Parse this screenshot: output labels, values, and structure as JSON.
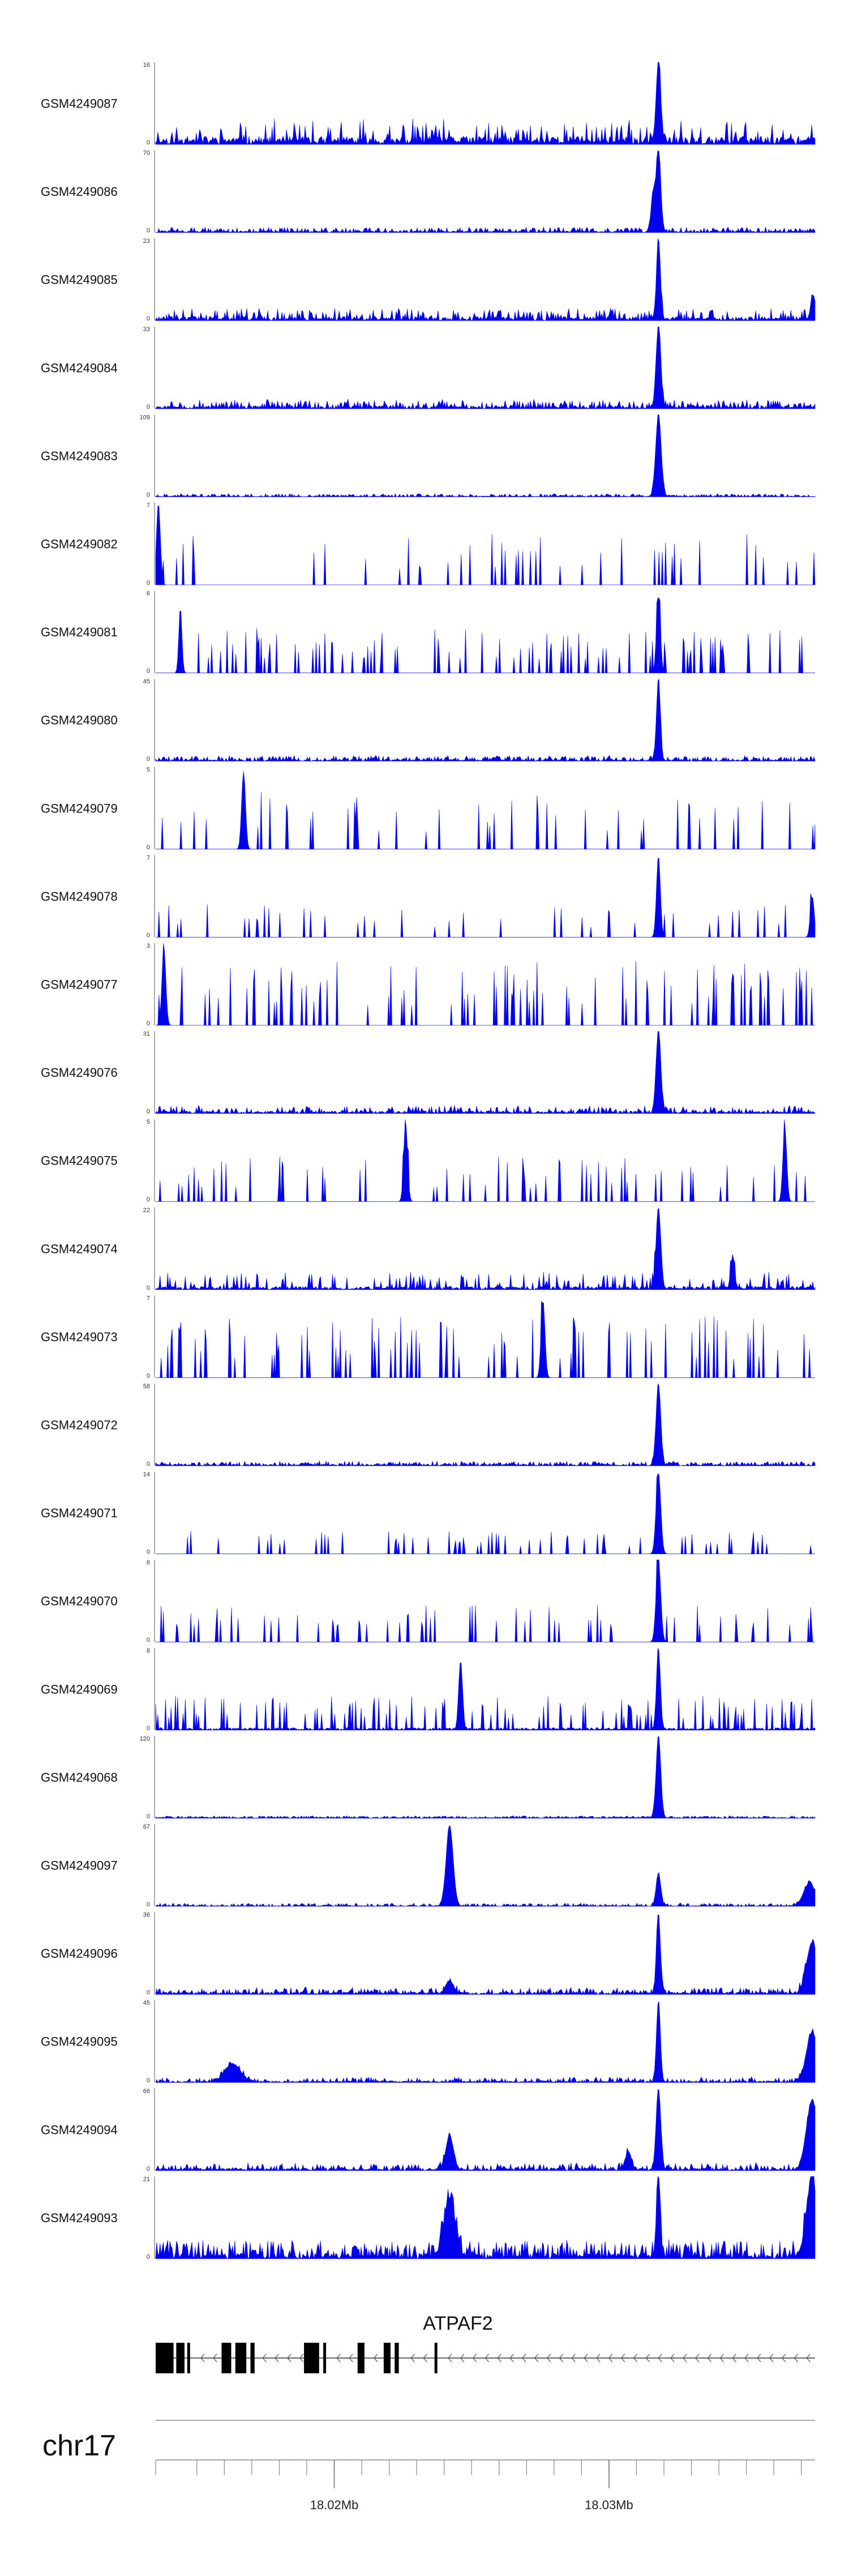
{
  "chart_data": {
    "type": "area",
    "title": "",
    "chromosome": "chr17",
    "region_mb": [
      18.0135,
      18.0375
    ],
    "series_color": "#0000ee",
    "series": [
      {
        "name": "GSM4249087",
        "ymax": "16",
        "ymin": "0",
        "max_value": 16,
        "baseline": 0.1,
        "noise": 0.22,
        "sparsity": 0.82,
        "seed": 11,
        "peaks": [
          {
            "pos": 18.0318,
            "height": 1.0,
            "width": 0.00012
          }
        ]
      },
      {
        "name": "GSM4249086",
        "ymax": "70",
        "ymin": "0",
        "max_value": 70,
        "baseline": 0.02,
        "noise": 0.05,
        "sparsity": 0.6,
        "seed": 12,
        "peaks": [
          {
            "pos": 18.0318,
            "height": 1.0,
            "width": 0.00012
          },
          {
            "pos": 18.0316,
            "height": 0.45,
            "width": 0.0001
          }
        ]
      },
      {
        "name": "GSM4249085",
        "ymax": "23",
        "ymin": "0",
        "max_value": 23,
        "baseline": 0.05,
        "noise": 0.12,
        "sparsity": 0.75,
        "seed": 13,
        "peaks": [
          {
            "pos": 18.0318,
            "height": 1.0,
            "width": 0.0001
          },
          {
            "pos": 18.0374,
            "height": 0.28,
            "width": 0.0001
          }
        ]
      },
      {
        "name": "GSM4249084",
        "ymax": "33",
        "ymin": "0",
        "max_value": 33,
        "baseline": 0.04,
        "noise": 0.08,
        "sparsity": 0.7,
        "seed": 14,
        "peaks": [
          {
            "pos": 18.0318,
            "height": 1.0,
            "width": 0.00012
          }
        ]
      },
      {
        "name": "GSM4249083",
        "ymax": "109",
        "ymin": "0",
        "max_value": 109,
        "baseline": 0.01,
        "noise": 0.03,
        "sparsity": 0.55,
        "seed": 15,
        "peaks": [
          {
            "pos": 18.0318,
            "height": 1.0,
            "width": 0.00014
          }
        ]
      },
      {
        "name": "GSM4249082",
        "ymax": "7",
        "ymin": "0",
        "max_value": 7,
        "baseline": 0.0,
        "noise": 0.62,
        "sparsity": 0.93,
        "seed": 16,
        "peaks": [
          {
            "pos": 18.0136,
            "height": 1.0,
            "width": 0.0001
          }
        ]
      },
      {
        "name": "GSM4249081",
        "ymax": "6",
        "ymin": "0",
        "max_value": 6,
        "baseline": 0.0,
        "noise": 0.55,
        "sparsity": 0.88,
        "seed": 17,
        "peaks": [
          {
            "pos": 18.0318,
            "height": 0.95,
            "width": 0.0001
          },
          {
            "pos": 18.0144,
            "height": 0.8,
            "width": 8e-05
          }
        ]
      },
      {
        "name": "GSM4249080",
        "ymax": "45",
        "ymin": "0",
        "max_value": 45,
        "baseline": 0.02,
        "noise": 0.05,
        "sparsity": 0.6,
        "seed": 18,
        "peaks": [
          {
            "pos": 18.0318,
            "height": 1.0,
            "width": 0.0001
          }
        ]
      },
      {
        "name": "GSM4249079",
        "ymax": "5",
        "ymin": "0",
        "max_value": 5,
        "baseline": 0.0,
        "noise": 0.7,
        "sparsity": 0.9,
        "seed": 19,
        "peaks": [
          {
            "pos": 18.0167,
            "height": 0.95,
            "width": 0.0001
          }
        ]
      },
      {
        "name": "GSM4249078",
        "ymax": "7",
        "ymin": "0",
        "max_value": 7,
        "baseline": 0.0,
        "noise": 0.4,
        "sparsity": 0.93,
        "seed": 20,
        "peaks": [
          {
            "pos": 18.0318,
            "height": 1.0,
            "width": 0.0001
          },
          {
            "pos": 18.0374,
            "height": 0.5,
            "width": 0.0001
          }
        ]
      },
      {
        "name": "GSM4249077",
        "ymax": "3",
        "ymin": "0",
        "max_value": 3,
        "baseline": 0.0,
        "noise": 0.78,
        "sparsity": 0.85,
        "seed": 21,
        "peaks": [
          {
            "pos": 18.0138,
            "height": 0.95,
            "width": 0.0001
          }
        ]
      },
      {
        "name": "GSM4249076",
        "ymax": "31",
        "ymin": "0",
        "max_value": 31,
        "baseline": 0.03,
        "noise": 0.07,
        "sparsity": 0.7,
        "seed": 22,
        "peaks": [
          {
            "pos": 18.0318,
            "height": 1.0,
            "width": 0.00012
          }
        ]
      },
      {
        "name": "GSM4249075",
        "ymax": "5",
        "ymin": "0",
        "max_value": 5,
        "baseline": 0.0,
        "noise": 0.55,
        "sparsity": 0.88,
        "seed": 23,
        "peaks": [
          {
            "pos": 18.0226,
            "height": 0.95,
            "width": 0.0001
          },
          {
            "pos": 18.0364,
            "height": 0.9,
            "width": 0.0001
          }
        ]
      },
      {
        "name": "GSM4249074",
        "ymax": "22",
        "ymin": "0",
        "max_value": 22,
        "baseline": 0.04,
        "noise": 0.18,
        "sparsity": 0.8,
        "seed": 24,
        "peaks": [
          {
            "pos": 18.0318,
            "height": 1.0,
            "width": 0.00012
          },
          {
            "pos": 18.0345,
            "height": 0.4,
            "width": 0.0001
          }
        ]
      },
      {
        "name": "GSM4249073",
        "ymax": "7",
        "ymin": "0",
        "max_value": 7,
        "baseline": 0.0,
        "noise": 0.75,
        "sparsity": 0.85,
        "seed": 25,
        "peaks": [
          {
            "pos": 18.0276,
            "height": 0.95,
            "width": 0.0001
          }
        ]
      },
      {
        "name": "GSM4249072",
        "ymax": "58",
        "ymin": "0",
        "max_value": 58,
        "baseline": 0.02,
        "noise": 0.04,
        "sparsity": 0.6,
        "seed": 26,
        "peaks": [
          {
            "pos": 18.0318,
            "height": 1.0,
            "width": 0.00012
          }
        ]
      },
      {
        "name": "GSM4249071",
        "ymax": "14",
        "ymin": "0",
        "max_value": 14,
        "baseline": 0.0,
        "noise": 0.28,
        "sparsity": 0.9,
        "seed": 27,
        "peaks": [
          {
            "pos": 18.0318,
            "height": 1.0,
            "width": 0.00012
          }
        ]
      },
      {
        "name": "GSM4249070",
        "ymax": "6",
        "ymin": "0",
        "max_value": 6,
        "baseline": 0.0,
        "noise": 0.45,
        "sparsity": 0.9,
        "seed": 28,
        "peaks": [
          {
            "pos": 18.0318,
            "height": 1.0,
            "width": 0.00012
          }
        ]
      },
      {
        "name": "GSM4249069",
        "ymax": "8",
        "ymin": "0",
        "max_value": 8,
        "baseline": 0.03,
        "noise": 0.4,
        "sparsity": 0.82,
        "seed": 29,
        "peaks": [
          {
            "pos": 18.0318,
            "height": 1.0,
            "width": 0.0001
          },
          {
            "pos": 18.0246,
            "height": 0.85,
            "width": 0.0001
          }
        ]
      },
      {
        "name": "GSM4249068",
        "ymax": "120",
        "ymin": "0",
        "max_value": 120,
        "baseline": 0.01,
        "noise": 0.02,
        "sparsity": 0.5,
        "seed": 30,
        "peaks": [
          {
            "pos": 18.0318,
            "height": 1.0,
            "width": 0.00012
          }
        ]
      },
      {
        "name": "GSM4249097",
        "ymax": "67",
        "ymin": "0",
        "max_value": 67,
        "baseline": 0.01,
        "noise": 0.03,
        "sparsity": 0.6,
        "seed": 31,
        "peaks": [
          {
            "pos": 18.0242,
            "height": 0.98,
            "width": 0.00018
          },
          {
            "pos": 18.0318,
            "height": 0.4,
            "width": 0.00012
          },
          {
            "pos": 18.0373,
            "height": 0.28,
            "width": 0.0003
          }
        ]
      },
      {
        "name": "GSM4249096",
        "ymax": "36",
        "ymin": "0",
        "max_value": 36,
        "baseline": 0.03,
        "noise": 0.06,
        "sparsity": 0.65,
        "seed": 32,
        "peaks": [
          {
            "pos": 18.0318,
            "height": 1.0,
            "width": 0.0001
          },
          {
            "pos": 18.0374,
            "height": 0.62,
            "width": 0.0003
          },
          {
            "pos": 18.0242,
            "height": 0.15,
            "width": 0.0002
          }
        ]
      },
      {
        "name": "GSM4249095",
        "ymax": "45",
        "ymin": "0",
        "max_value": 45,
        "baseline": 0.02,
        "noise": 0.05,
        "sparsity": 0.65,
        "seed": 33,
        "peaks": [
          {
            "pos": 18.0318,
            "height": 1.0,
            "width": 0.0001
          },
          {
            "pos": 18.0374,
            "height": 0.6,
            "width": 0.0003
          },
          {
            "pos": 18.0163,
            "height": 0.22,
            "width": 0.0004
          }
        ]
      },
      {
        "name": "GSM4249094",
        "ymax": "66",
        "ymin": "0",
        "max_value": 66,
        "baseline": 0.03,
        "noise": 0.07,
        "sparsity": 0.7,
        "seed": 34,
        "peaks": [
          {
            "pos": 18.0318,
            "height": 1.0,
            "width": 0.00012
          },
          {
            "pos": 18.0374,
            "height": 0.85,
            "width": 0.0003
          },
          {
            "pos": 18.0242,
            "height": 0.42,
            "width": 0.0002
          },
          {
            "pos": 18.0307,
            "height": 0.22,
            "width": 0.00015
          }
        ]
      },
      {
        "name": "GSM4249093",
        "ymax": "21",
        "ymin": "0",
        "max_value": 21,
        "baseline": 0.07,
        "noise": 0.18,
        "sparsity": 0.55,
        "seed": 35,
        "peaks": [
          {
            "pos": 18.0318,
            "height": 1.0,
            "width": 0.0001
          },
          {
            "pos": 18.0242,
            "height": 0.7,
            "width": 0.0003
          },
          {
            "pos": 18.0374,
            "height": 0.9,
            "width": 0.0003
          }
        ]
      }
    ],
    "gene": {
      "name": "ATPAF2",
      "strand": "-",
      "start": 18.0135,
      "end": 18.0375,
      "exons": [
        {
          "start": 18.0135,
          "end": 18.01415
        },
        {
          "start": 18.01425,
          "end": 18.01455
        },
        {
          "start": 18.01465,
          "end": 18.01475
        },
        {
          "start": 18.0159,
          "end": 18.01625
        },
        {
          "start": 18.0164,
          "end": 18.0168
        },
        {
          "start": 18.01695,
          "end": 18.0171
        },
        {
          "start": 18.0189,
          "end": 18.01945
        },
        {
          "start": 18.0196,
          "end": 18.0197
        },
        {
          "start": 18.02085,
          "end": 18.0211
        },
        {
          "start": 18.0218,
          "end": 18.02205
        },
        {
          "start": 18.0222,
          "end": 18.02235
        },
        {
          "start": 18.02365,
          "end": 18.02375
        }
      ]
    },
    "axis": {
      "ticks": [
        18.0135,
        18.015,
        18.016,
        18.017,
        18.018,
        18.019,
        18.02,
        18.021,
        18.022,
        18.023,
        18.024,
        18.025,
        18.026,
        18.027,
        18.028,
        18.029,
        18.03,
        18.031,
        18.032,
        18.033,
        18.034,
        18.035,
        18.036,
        18.037
      ],
      "labeled_ticks": [
        {
          "value": 18.02,
          "label": "18.02Mb"
        },
        {
          "value": 18.03,
          "label": "18.03Mb"
        }
      ]
    }
  }
}
